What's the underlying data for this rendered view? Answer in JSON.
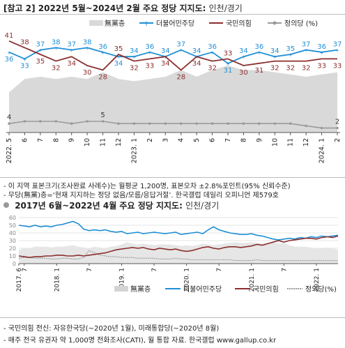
{
  "top": {
    "title": "[참고 2] 2022년 5월~2024년 2월 주요 정당 지지도:",
    "subtitle": "인천/경기",
    "notes": [
      "- 이 지역 표본크기(조사완료 사례수)는 월평균 1,200명, 표본오차 ±2.8%포인트(95% 신뢰수준)",
      "- 무당(無黨)층=‘현재 지지하는 정당 없음/모름/응답거절’. 한국갤럽 데일리 오피니언 제579호"
    ]
  },
  "bottom": {
    "title": "2017년 6월~2022년 4월 주요 정당 지지도:",
    "subtitle": "인천/경기",
    "notes": [
      "- 국민의힘 전신: 자유한국당(~2020년 1월), 미래통합당(~2020년 8월)",
      "- 매주 전국 유권자 약 1,000명 전화조사(CATI), 월 통합 자료. 한국갤럽 www.gallup.co.kr"
    ]
  },
  "colors": {
    "nonpartisan": "#d9d9d9",
    "democratic": "#1f8fd6",
    "ppp": "#8b2e2e",
    "justice": "#9a9a9a"
  },
  "chart_data": [
    {
      "type": "line",
      "title": "[참고 2] 2022년 5월~2024년 2월 주요 정당 지지도: 인천/경기",
      "legend": [
        "無黨층",
        "더불어민주당",
        "국민의힘",
        "정의당 (%)"
      ],
      "legend_position": "top-right",
      "x": [
        "2022. 5",
        "6",
        "7",
        "8",
        "9",
        "10",
        "11",
        "12",
        "2023. 1",
        "2",
        "3",
        "4",
        "5",
        "6",
        "7",
        "8",
        "9",
        "10",
        "11",
        "12",
        "2024. 1",
        "2"
      ],
      "ylim": [
        0,
        50
      ],
      "series": [
        {
          "name": "無黨층",
          "type": "area",
          "values": [
            18,
            24,
            25,
            24,
            25,
            24,
            27,
            24,
            23,
            24,
            25,
            28,
            25,
            28,
            30,
            28,
            28,
            27,
            26,
            25,
            26,
            27
          ]
        },
        {
          "name": "더불어민주당",
          "values": [
            36,
            33,
            37,
            38,
            37,
            38,
            36,
            34,
            34,
            36,
            34,
            37,
            34,
            36,
            31,
            34,
            36,
            34,
            35,
            37,
            36,
            37
          ]
        },
        {
          "name": "국민의힘",
          "values": [
            41,
            38,
            35,
            32,
            34,
            30,
            28,
            35,
            32,
            33,
            34,
            28,
            34,
            32,
            33,
            30,
            31,
            32,
            32,
            32,
            33,
            33
          ]
        },
        {
          "name": "정의당",
          "values": [
            4,
            5,
            5,
            5,
            4,
            5,
            5,
            4,
            4,
            4,
            4,
            4,
            4,
            4,
            4,
            4,
            4,
            4,
            4,
            3,
            2,
            2
          ]
        }
      ],
      "labels": {
        "더불어민주당": [
          36,
          33,
          37,
          38,
          37,
          38,
          36,
          34,
          34,
          36,
          34,
          37,
          34,
          36,
          31,
          34,
          36,
          34,
          35,
          37,
          36,
          37
        ],
        "국민의힘": [
          41,
          38,
          35,
          32,
          34,
          30,
          28,
          35,
          32,
          33,
          34,
          28,
          34,
          32,
          33,
          30,
          31,
          32,
          32,
          32,
          33,
          33
        ],
        "정의당": [
          [
            0,
            4
          ],
          [
            6,
            5
          ],
          [
            21,
            2
          ]
        ]
      }
    },
    {
      "type": "line",
      "title": "2017년 6월~2022년 4월 주요 정당 지지도: 인천/경기",
      "legend": [
        "無黨층",
        "더불어민주당",
        "국민의힘",
        "정의당(%)"
      ],
      "legend_position": "bottom",
      "x_ticks": [
        "2017. 6",
        "7",
        "2018. 1",
        "7",
        "2019. 1",
        "7",
        "2020. 1",
        "7",
        "2021. 1",
        "7",
        "2022. 1"
      ],
      "y_ticks": [
        0,
        10,
        20,
        30,
        40,
        50,
        60
      ],
      "ylim": [
        0,
        60
      ],
      "series": [
        {
          "name": "無黨층",
          "type": "area",
          "values": [
            18,
            20,
            20,
            22,
            22,
            22,
            21,
            22,
            22,
            23,
            24,
            22,
            21,
            20,
            22,
            21,
            20,
            22,
            23,
            25,
            28,
            26,
            25,
            26,
            25,
            24,
            25,
            25,
            25,
            24,
            23,
            24,
            23,
            24,
            26,
            25,
            24,
            25,
            26,
            27,
            28,
            27,
            27,
            28,
            27,
            26,
            27,
            28,
            26,
            27,
            24,
            22,
            22,
            22,
            21,
            20,
            20,
            21,
            20,
            18
          ]
        },
        {
          "name": "더불어민주당",
          "values": [
            50,
            49,
            48,
            50,
            48,
            49,
            48,
            50,
            51,
            53,
            55,
            52,
            45,
            43,
            44,
            43,
            44,
            42,
            41,
            42,
            39,
            40,
            41,
            39,
            40,
            41,
            40,
            39,
            40,
            41,
            38,
            39,
            40,
            41,
            39,
            44,
            48,
            44,
            42,
            40,
            39,
            38,
            38,
            39,
            37,
            36,
            34,
            32,
            31,
            32,
            33,
            32,
            34,
            33,
            35,
            34,
            36,
            35,
            36,
            37
          ]
        },
        {
          "name": "국민의힘",
          "values": [
            10,
            9,
            8,
            9,
            9,
            10,
            10,
            11,
            11,
            10,
            10,
            11,
            10,
            11,
            12,
            13,
            14,
            16,
            18,
            19,
            20,
            21,
            20,
            21,
            19,
            18,
            20,
            19,
            18,
            19,
            17,
            16,
            17,
            19,
            21,
            22,
            20,
            19,
            21,
            22,
            22,
            21,
            22,
            23,
            25,
            24,
            26,
            28,
            30,
            28,
            30,
            31,
            32,
            33,
            33,
            32,
            34,
            35,
            34,
            36
          ]
        },
        {
          "name": "정의당",
          "values": [
            7,
            8,
            8,
            7,
            7,
            7,
            6,
            6,
            7,
            7,
            6,
            6,
            8,
            17,
            14,
            11,
            10,
            9,
            9,
            8,
            8,
            8,
            7,
            7,
            7,
            7,
            6,
            6,
            6,
            7,
            6,
            6,
            5,
            5,
            5,
            5,
            5,
            5,
            5,
            5,
            4,
            4,
            4,
            4,
            5,
            4,
            4,
            4,
            4,
            4,
            4,
            4,
            4,
            4,
            4,
            4,
            4,
            4,
            4,
            4
          ]
        }
      ]
    }
  ]
}
